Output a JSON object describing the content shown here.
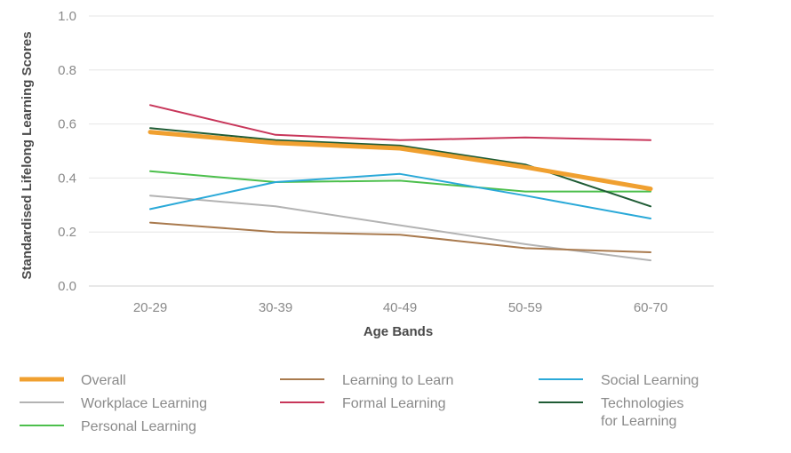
{
  "chart_data": {
    "type": "line",
    "xlabel": "Age Bands",
    "ylabel": "Standardised Lifelong Learning Scores",
    "categories": [
      "20-29",
      "30-39",
      "40-49",
      "50-59",
      "60-70"
    ],
    "ylim": [
      0.0,
      1.0
    ],
    "yticks": [
      "0.0",
      "0.2",
      "0.4",
      "0.6",
      "0.8",
      "1.0"
    ],
    "grid": true,
    "legend_position": "bottom",
    "series": [
      {
        "name": "Overall",
        "color": "#f0a030",
        "emphasis": true,
        "values": [
          0.57,
          0.53,
          0.51,
          0.44,
          0.36
        ]
      },
      {
        "name": "Workplace Learning",
        "color": "#b3b3b3",
        "values": [
          0.335,
          0.295,
          0.225,
          0.155,
          0.095
        ]
      },
      {
        "name": "Personal Learning",
        "color": "#4cbf4c",
        "values": [
          0.425,
          0.385,
          0.39,
          0.35,
          0.35
        ]
      },
      {
        "name": "Learning to Learn",
        "color": "#a97a4e",
        "values": [
          0.235,
          0.2,
          0.19,
          0.14,
          0.125
        ]
      },
      {
        "name": "Formal Learning",
        "color": "#c8365a",
        "values": [
          0.67,
          0.56,
          0.54,
          0.55,
          0.54
        ]
      },
      {
        "name": "Social Learning",
        "color": "#2aa9d8",
        "values": [
          0.285,
          0.385,
          0.415,
          0.335,
          0.25
        ]
      },
      {
        "name": "Technologies for Learning",
        "label_lines": [
          "Technologies",
          "for Learning"
        ],
        "color": "#1f5c35",
        "values": [
          0.585,
          0.54,
          0.52,
          0.45,
          0.295
        ]
      }
    ]
  }
}
